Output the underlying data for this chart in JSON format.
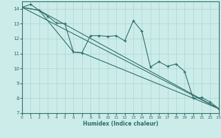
{
  "xlabel": "Humidex (Indice chaleur)",
  "bg_color": "#ccecea",
  "grid_color": "#aad5d2",
  "line_color": "#2d6e68",
  "xlim": [
    0,
    23
  ],
  "ylim": [
    7,
    14.5
  ],
  "xticks": [
    0,
    1,
    2,
    3,
    4,
    5,
    6,
    7,
    8,
    9,
    10,
    11,
    12,
    13,
    14,
    15,
    16,
    17,
    18,
    19,
    20,
    21,
    22,
    23
  ],
  "yticks": [
    7,
    8,
    9,
    10,
    11,
    12,
    13,
    14
  ],
  "main_line_x": [
    0,
    1,
    2,
    3,
    4,
    5,
    6,
    7,
    8,
    9,
    10,
    11,
    12,
    13,
    14,
    15,
    16,
    17,
    18,
    19,
    20,
    21,
    22,
    23
  ],
  "main_line_y": [
    14.1,
    14.3,
    13.9,
    13.5,
    13.05,
    13.0,
    11.1,
    11.05,
    12.2,
    12.2,
    12.15,
    12.2,
    11.85,
    13.2,
    12.5,
    10.1,
    10.45,
    10.15,
    10.3,
    9.8,
    8.0,
    8.05,
    7.75,
    7.3
  ],
  "ref_lines": [
    {
      "x": [
        0,
        23
      ],
      "y": [
        14.1,
        7.3
      ]
    },
    {
      "x": [
        0,
        2,
        23
      ],
      "y": [
        14.1,
        13.9,
        7.3
      ]
    },
    {
      "x": [
        0,
        2,
        6,
        7,
        23
      ],
      "y": [
        14.1,
        13.9,
        11.1,
        11.05,
        7.3
      ]
    }
  ]
}
